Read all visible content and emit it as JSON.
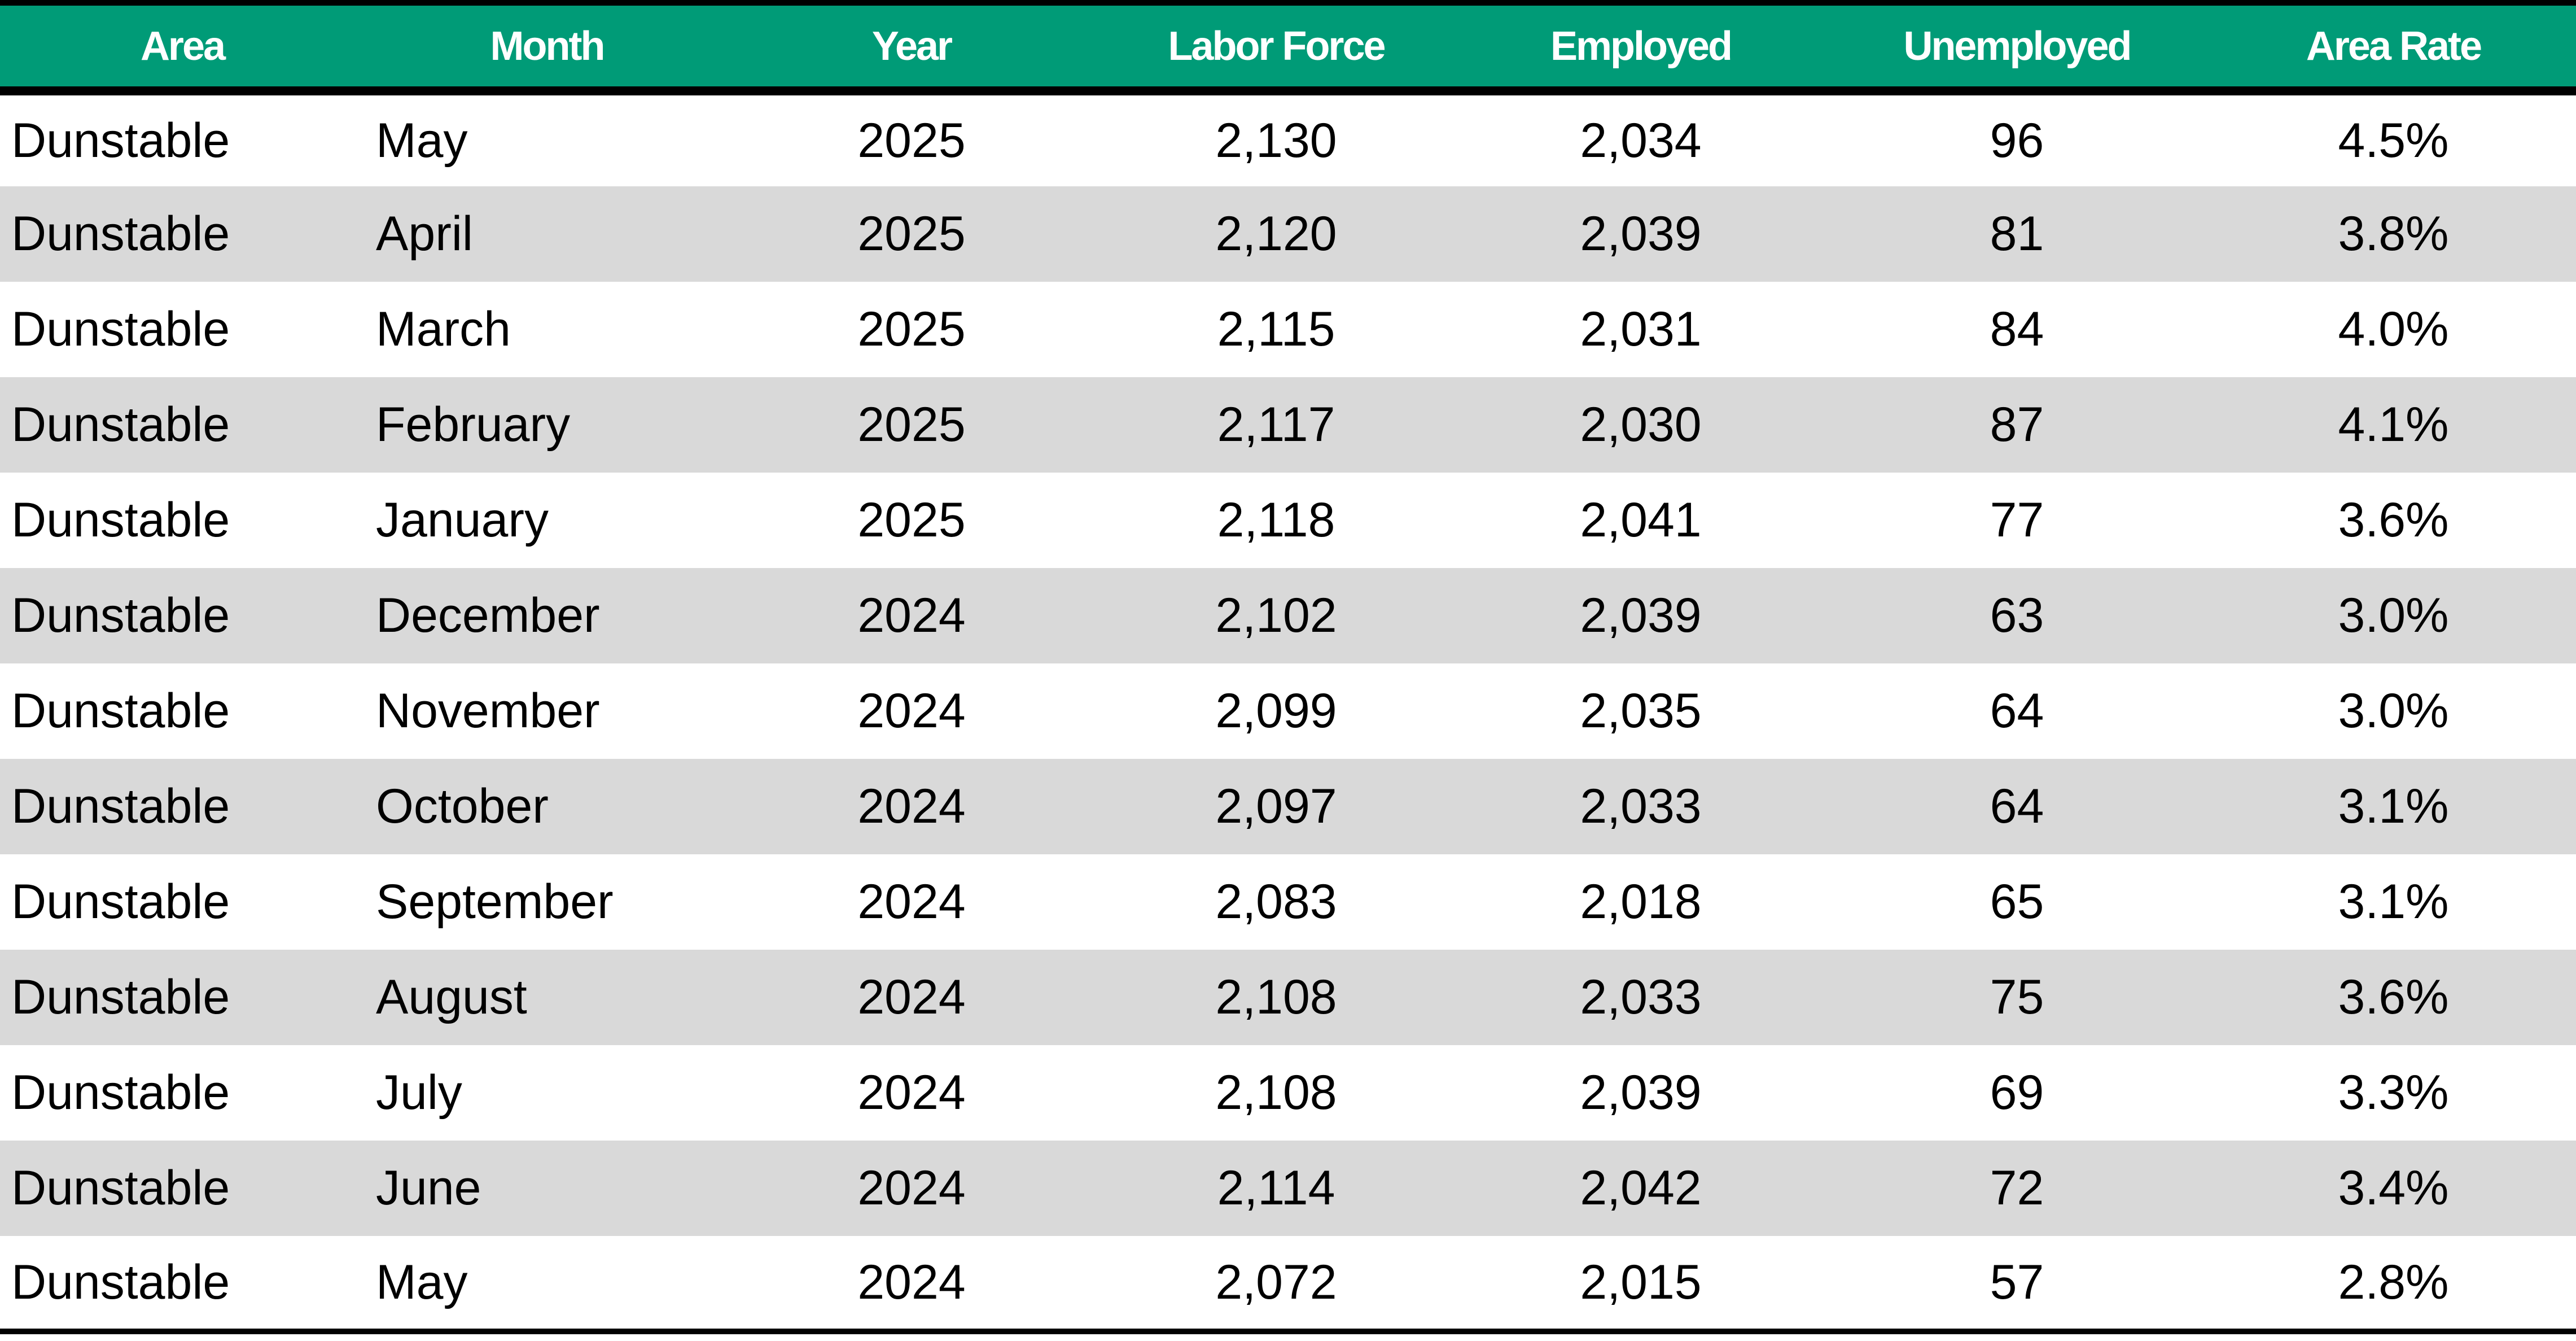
{
  "table": {
    "header_color": "#009B77",
    "stripe_color": "#D9D9D9",
    "columns": [
      "Area",
      "Month",
      "Year",
      "Labor Force",
      "Employed",
      "Unemployed",
      "Area Rate"
    ],
    "rows": [
      [
        "Dunstable",
        "May",
        "2025",
        "2,130",
        "2,034",
        "96",
        "4.5%"
      ],
      [
        "Dunstable",
        "April",
        "2025",
        "2,120",
        "2,039",
        "81",
        "3.8%"
      ],
      [
        "Dunstable",
        "March",
        "2025",
        "2,115",
        "2,031",
        "84",
        "4.0%"
      ],
      [
        "Dunstable",
        "February",
        "2025",
        "2,117",
        "2,030",
        "87",
        "4.1%"
      ],
      [
        "Dunstable",
        "January",
        "2025",
        "2,118",
        "2,041",
        "77",
        "3.6%"
      ],
      [
        "Dunstable",
        "December",
        "2024",
        "2,102",
        "2,039",
        "63",
        "3.0%"
      ],
      [
        "Dunstable",
        "November",
        "2024",
        "2,099",
        "2,035",
        "64",
        "3.0%"
      ],
      [
        "Dunstable",
        "October",
        "2024",
        "2,097",
        "2,033",
        "64",
        "3.1%"
      ],
      [
        "Dunstable",
        "September",
        "2024",
        "2,083",
        "2,018",
        "65",
        "3.1%"
      ],
      [
        "Dunstable",
        "August",
        "2024",
        "2,108",
        "2,033",
        "75",
        "3.6%"
      ],
      [
        "Dunstable",
        "July",
        "2024",
        "2,108",
        "2,039",
        "69",
        "3.3%"
      ],
      [
        "Dunstable",
        "June",
        "2024",
        "2,114",
        "2,042",
        "72",
        "3.4%"
      ],
      [
        "Dunstable",
        "May",
        "2024",
        "2,072",
        "2,015",
        "57",
        "2.8%"
      ]
    ]
  }
}
